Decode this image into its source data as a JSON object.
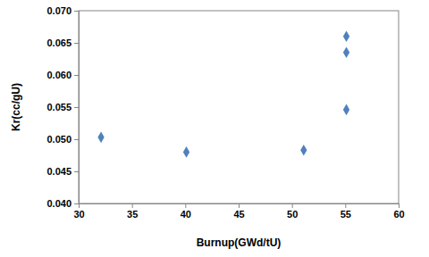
{
  "chart_data": {
    "type": "scatter",
    "x_label": "Burnup(GWd/tU)",
    "y_label": "Kr(cc/gU)",
    "x": [
      32.1,
      40.1,
      51.1,
      55.1,
      55.1,
      55.1
    ],
    "values": [
      0.0503,
      0.048,
      0.0483,
      0.066,
      0.0635,
      0.0546
    ],
    "color": "#4f81bd",
    "marker": "diamond",
    "xlim": [
      30,
      60
    ],
    "xticks": [
      30,
      35,
      40,
      45,
      50,
      55,
      60
    ],
    "ylim": [
      0.04,
      0.07
    ],
    "yticks": [
      {
        "value": 0.04,
        "label": "0.040"
      },
      {
        "value": 0.045,
        "label": "0.045"
      },
      {
        "value": 0.05,
        "label": "0.050"
      },
      {
        "value": 0.055,
        "label": "0.055"
      },
      {
        "value": 0.06,
        "label": "0.060"
      },
      {
        "value": 0.065,
        "label": "0.065"
      },
      {
        "value": 0.07,
        "label": "0.070"
      }
    ],
    "grid": false
  }
}
